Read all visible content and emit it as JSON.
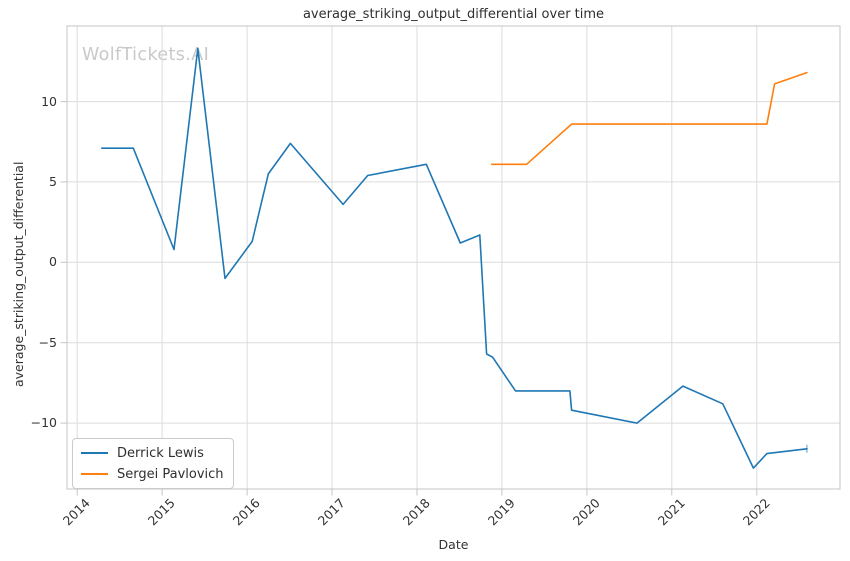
{
  "chart_data": {
    "type": "line",
    "title": "average_striking_output_differential over time",
    "xlabel": "Date",
    "ylabel": "average_striking_output_differential",
    "watermark": "WolfTickets.AI",
    "grid": true,
    "legend_position": "lower left",
    "x_axis": {
      "unit": "year",
      "range": [
        2013.88,
        2022.98
      ],
      "ticks": [
        2014,
        2015,
        2016,
        2017,
        2018,
        2019,
        2020,
        2021,
        2022
      ],
      "tick_labels": [
        "2014",
        "2015",
        "2016",
        "2017",
        "2018",
        "2019",
        "2020",
        "2021",
        "2022"
      ],
      "tick_rotation_deg": 45
    },
    "y_axis": {
      "range": [
        -14.1,
        14.7
      ],
      "ticks": [
        -10,
        -5,
        0,
        5,
        10
      ],
      "tick_labels": [
        "−10",
        "−5",
        "0",
        "5",
        "10"
      ]
    },
    "series": [
      {
        "name": "Derrick Lewis",
        "color": "#1f77b4",
        "points": [
          [
            2014.29,
            7.1
          ],
          [
            2014.66,
            7.1
          ],
          [
            2015.14,
            0.8
          ],
          [
            2015.42,
            13.3
          ],
          [
            2015.74,
            -1.0
          ],
          [
            2016.06,
            1.3
          ],
          [
            2016.25,
            5.5
          ],
          [
            2016.51,
            7.4
          ],
          [
            2017.13,
            3.6
          ],
          [
            2017.42,
            5.4
          ],
          [
            2018.11,
            6.1
          ],
          [
            2018.51,
            1.2
          ],
          [
            2018.74,
            1.7
          ],
          [
            2018.82,
            -5.7
          ],
          [
            2018.89,
            -5.9
          ],
          [
            2019.16,
            -8.0
          ],
          [
            2019.8,
            -8.0
          ],
          [
            2019.82,
            -9.2
          ],
          [
            2020.59,
            -10.0
          ],
          [
            2021.13,
            -7.7
          ],
          [
            2021.6,
            -8.8
          ],
          [
            2021.96,
            -12.8
          ],
          [
            2022.12,
            -11.9
          ],
          [
            2022.59,
            -11.6
          ]
        ]
      },
      {
        "name": "Sergei Pavlovich",
        "color": "#ff7f0e",
        "points": [
          [
            2018.88,
            6.1
          ],
          [
            2019.29,
            6.1
          ],
          [
            2019.82,
            8.6
          ],
          [
            2022.12,
            8.6
          ],
          [
            2022.21,
            11.1
          ],
          [
            2022.59,
            11.8
          ]
        ]
      }
    ],
    "colors": {
      "grid": "#dcdcdc",
      "spine": "#c5c5c5",
      "text": "#333333",
      "watermark": "#c9c9c9"
    }
  }
}
